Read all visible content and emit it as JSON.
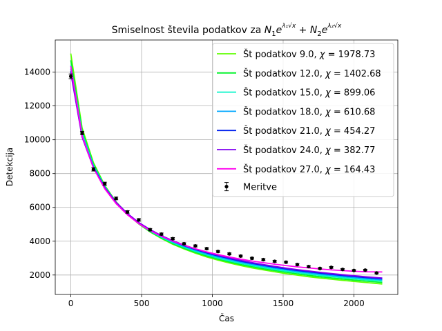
{
  "chart_data": {
    "type": "line",
    "title": "Smiselnost števila podatkov za N_1e^{λ_1√x} + N_2e^{λ_2√x}",
    "title_parts": {
      "prefix": "Smiselnost števila podatkov za ",
      "n1": "N",
      "n1_sub": "1",
      "e1": "e",
      "exp1": "λ₁√x",
      "plus": " + ",
      "n2": "N",
      "n2_sub": "2",
      "e2": "e",
      "exp2": "λ₂√x"
    },
    "xlabel": "Čas",
    "ylabel": "Detekcija",
    "xlim": [
      -110,
      2310
    ],
    "ylim": [
      850,
      15900
    ],
    "x_ticks": [
      0,
      500,
      1000,
      1500,
      2000
    ],
    "y_ticks": [
      2000,
      4000,
      6000,
      8000,
      10000,
      12000,
      14000
    ],
    "grid": true,
    "legend_placement": "upper right",
    "series": [
      {
        "name": "Št podatkov 9.0, χ = 1978.73",
        "label_text": "Št podatkov 9.0, ",
        "chi_value": "1978.73",
        "color": "#5fff00",
        "x": [
          0,
          80,
          160,
          240,
          320,
          400,
          480,
          560,
          640,
          720,
          800,
          880,
          960,
          1040,
          1120,
          1200,
          1280,
          1360,
          1440,
          1520,
          1600,
          1680,
          1760,
          1840,
          1920,
          2000,
          2080,
          2200
        ],
        "values": [
          15100,
          10700,
          8650,
          7300,
          6330,
          5600,
          5020,
          4550,
          4160,
          3820,
          3540,
          3290,
          3070,
          2880,
          2710,
          2560,
          2420,
          2300,
          2190,
          2080,
          1990,
          1900,
          1820,
          1750,
          1680,
          1620,
          1560,
          1470
        ]
      },
      {
        "name": "Št podatkov 12.0, χ = 1402.68",
        "label_text": "Št podatkov 12.0, ",
        "chi_value": "1402.68",
        "color": "#00f52a",
        "x": [
          0,
          80,
          160,
          240,
          320,
          400,
          480,
          560,
          640,
          720,
          800,
          880,
          960,
          1040,
          1120,
          1200,
          1280,
          1360,
          1440,
          1520,
          1600,
          1680,
          1760,
          1840,
          1920,
          2000,
          2080,
          2200
        ],
        "values": [
          14700,
          10550,
          8560,
          7260,
          6310,
          5600,
          5030,
          4570,
          4190,
          3860,
          3580,
          3340,
          3130,
          2940,
          2770,
          2620,
          2490,
          2370,
          2260,
          2160,
          2070,
          1980,
          1900,
          1830,
          1760,
          1700,
          1640,
          1560
        ]
      },
      {
        "name": "Št podatkov 15.0, χ = 899.06",
        "label_text": "Št podatkov 15.0, ",
        "chi_value": "899.06",
        "color": "#00f5c8",
        "x": [
          0,
          80,
          160,
          240,
          320,
          400,
          480,
          560,
          640,
          720,
          800,
          880,
          960,
          1040,
          1120,
          1200,
          1280,
          1360,
          1440,
          1520,
          1600,
          1680,
          1760,
          1840,
          1920,
          2000,
          2080,
          2200
        ],
        "values": [
          14400,
          10400,
          8480,
          7220,
          6300,
          5600,
          5050,
          4600,
          4230,
          3910,
          3640,
          3400,
          3190,
          3000,
          2840,
          2690,
          2560,
          2440,
          2330,
          2230,
          2140,
          2060,
          1980,
          1910,
          1840,
          1780,
          1720,
          1640
        ]
      },
      {
        "name": "Št podatkov 18.0, χ = 610.68",
        "label_text": "Št podatkov 18.0, ",
        "chi_value": "610.68",
        "color": "#00a8ff",
        "x": [
          0,
          80,
          160,
          240,
          320,
          400,
          480,
          560,
          640,
          720,
          800,
          880,
          960,
          1040,
          1120,
          1200,
          1280,
          1360,
          1440,
          1520,
          1600,
          1680,
          1760,
          1840,
          1920,
          2000,
          2080,
          2200
        ],
        "values": [
          14200,
          10300,
          8420,
          7190,
          6290,
          5610,
          5070,
          4630,
          4270,
          3960,
          3690,
          3460,
          3250,
          3070,
          2910,
          2760,
          2630,
          2510,
          2400,
          2300,
          2210,
          2130,
          2050,
          1980,
          1910,
          1850,
          1790,
          1710
        ]
      },
      {
        "name": "Št podatkov 21.0, χ = 454.27",
        "label_text": "Št podatkov 21.0, ",
        "chi_value": "454.27",
        "color": "#0020ee",
        "x": [
          0,
          80,
          160,
          240,
          320,
          400,
          480,
          560,
          640,
          720,
          800,
          880,
          960,
          1040,
          1120,
          1200,
          1280,
          1360,
          1440,
          1520,
          1600,
          1680,
          1760,
          1840,
          1920,
          2000,
          2080,
          2200
        ],
        "values": [
          14050,
          10200,
          8370,
          7170,
          6290,
          5620,
          5090,
          4660,
          4300,
          4000,
          3740,
          3510,
          3310,
          3130,
          2970,
          2820,
          2690,
          2570,
          2460,
          2360,
          2270,
          2190,
          2110,
          2040,
          1970,
          1910,
          1850,
          1770
        ]
      },
      {
        "name": "Št podatkov 24.0, χ = 382.77",
        "label_text": "Št podatkov 24.0, ",
        "chi_value": "382.77",
        "color": "#8000f0",
        "x": [
          0,
          80,
          160,
          240,
          320,
          400,
          480,
          560,
          640,
          720,
          800,
          880,
          960,
          1040,
          1120,
          1200,
          1280,
          1360,
          1440,
          1520,
          1600,
          1680,
          1760,
          1840,
          1920,
          2000,
          2080,
          2200
        ],
        "values": [
          13950,
          10150,
          8340,
          7160,
          6300,
          5640,
          5110,
          4690,
          4330,
          4030,
          3770,
          3550,
          3350,
          3170,
          3010,
          2870,
          2740,
          2620,
          2510,
          2410,
          2320,
          2240,
          2160,
          2090,
          2020,
          1960,
          1900,
          1820
        ]
      },
      {
        "name": "Št podatkov 27.0, χ = 164.43",
        "label_text": "Št podatkov 27.0, ",
        "chi_value": "164.43",
        "color": "#ff00ee",
        "x": [
          0,
          80,
          160,
          240,
          320,
          400,
          480,
          560,
          640,
          720,
          800,
          880,
          960,
          1040,
          1120,
          1200,
          1280,
          1360,
          1440,
          1520,
          1600,
          1680,
          1760,
          1840,
          1920,
          2000,
          2080,
          2200
        ],
        "values": [
          14350,
          10250,
          8330,
          7100,
          6220,
          5560,
          5040,
          4630,
          4290,
          4000,
          3760,
          3550,
          3370,
          3210,
          3070,
          2940,
          2830,
          2730,
          2640,
          2560,
          2480,
          2420,
          2360,
          2300,
          2260,
          2220,
          2190,
          2180
        ]
      }
    ],
    "measurements": {
      "name": "Meritve",
      "color": "#000000",
      "x": [
        0,
        80,
        160,
        240,
        320,
        400,
        480,
        560,
        640,
        720,
        800,
        880,
        960,
        1040,
        1120,
        1200,
        1280,
        1360,
        1440,
        1520,
        1600,
        1680,
        1760,
        1840,
        1920,
        2000,
        2080,
        2160
      ],
      "y": [
        13750,
        10400,
        8250,
        7400,
        6530,
        5730,
        5260,
        4680,
        4420,
        4150,
        3850,
        3720,
        3560,
        3390,
        3250,
        3120,
        2990,
        2910,
        2810,
        2760,
        2620,
        2500,
        2390,
        2450,
        2330,
        2270,
        2290,
        2120
      ],
      "err": [
        140,
        100,
        100,
        90,
        80,
        75,
        75,
        70,
        65,
        65,
        60,
        60,
        60,
        58,
        58,
        56,
        55,
        55,
        53,
        53,
        52,
        50,
        50,
        50,
        48,
        48,
        48,
        46
      ]
    }
  }
}
